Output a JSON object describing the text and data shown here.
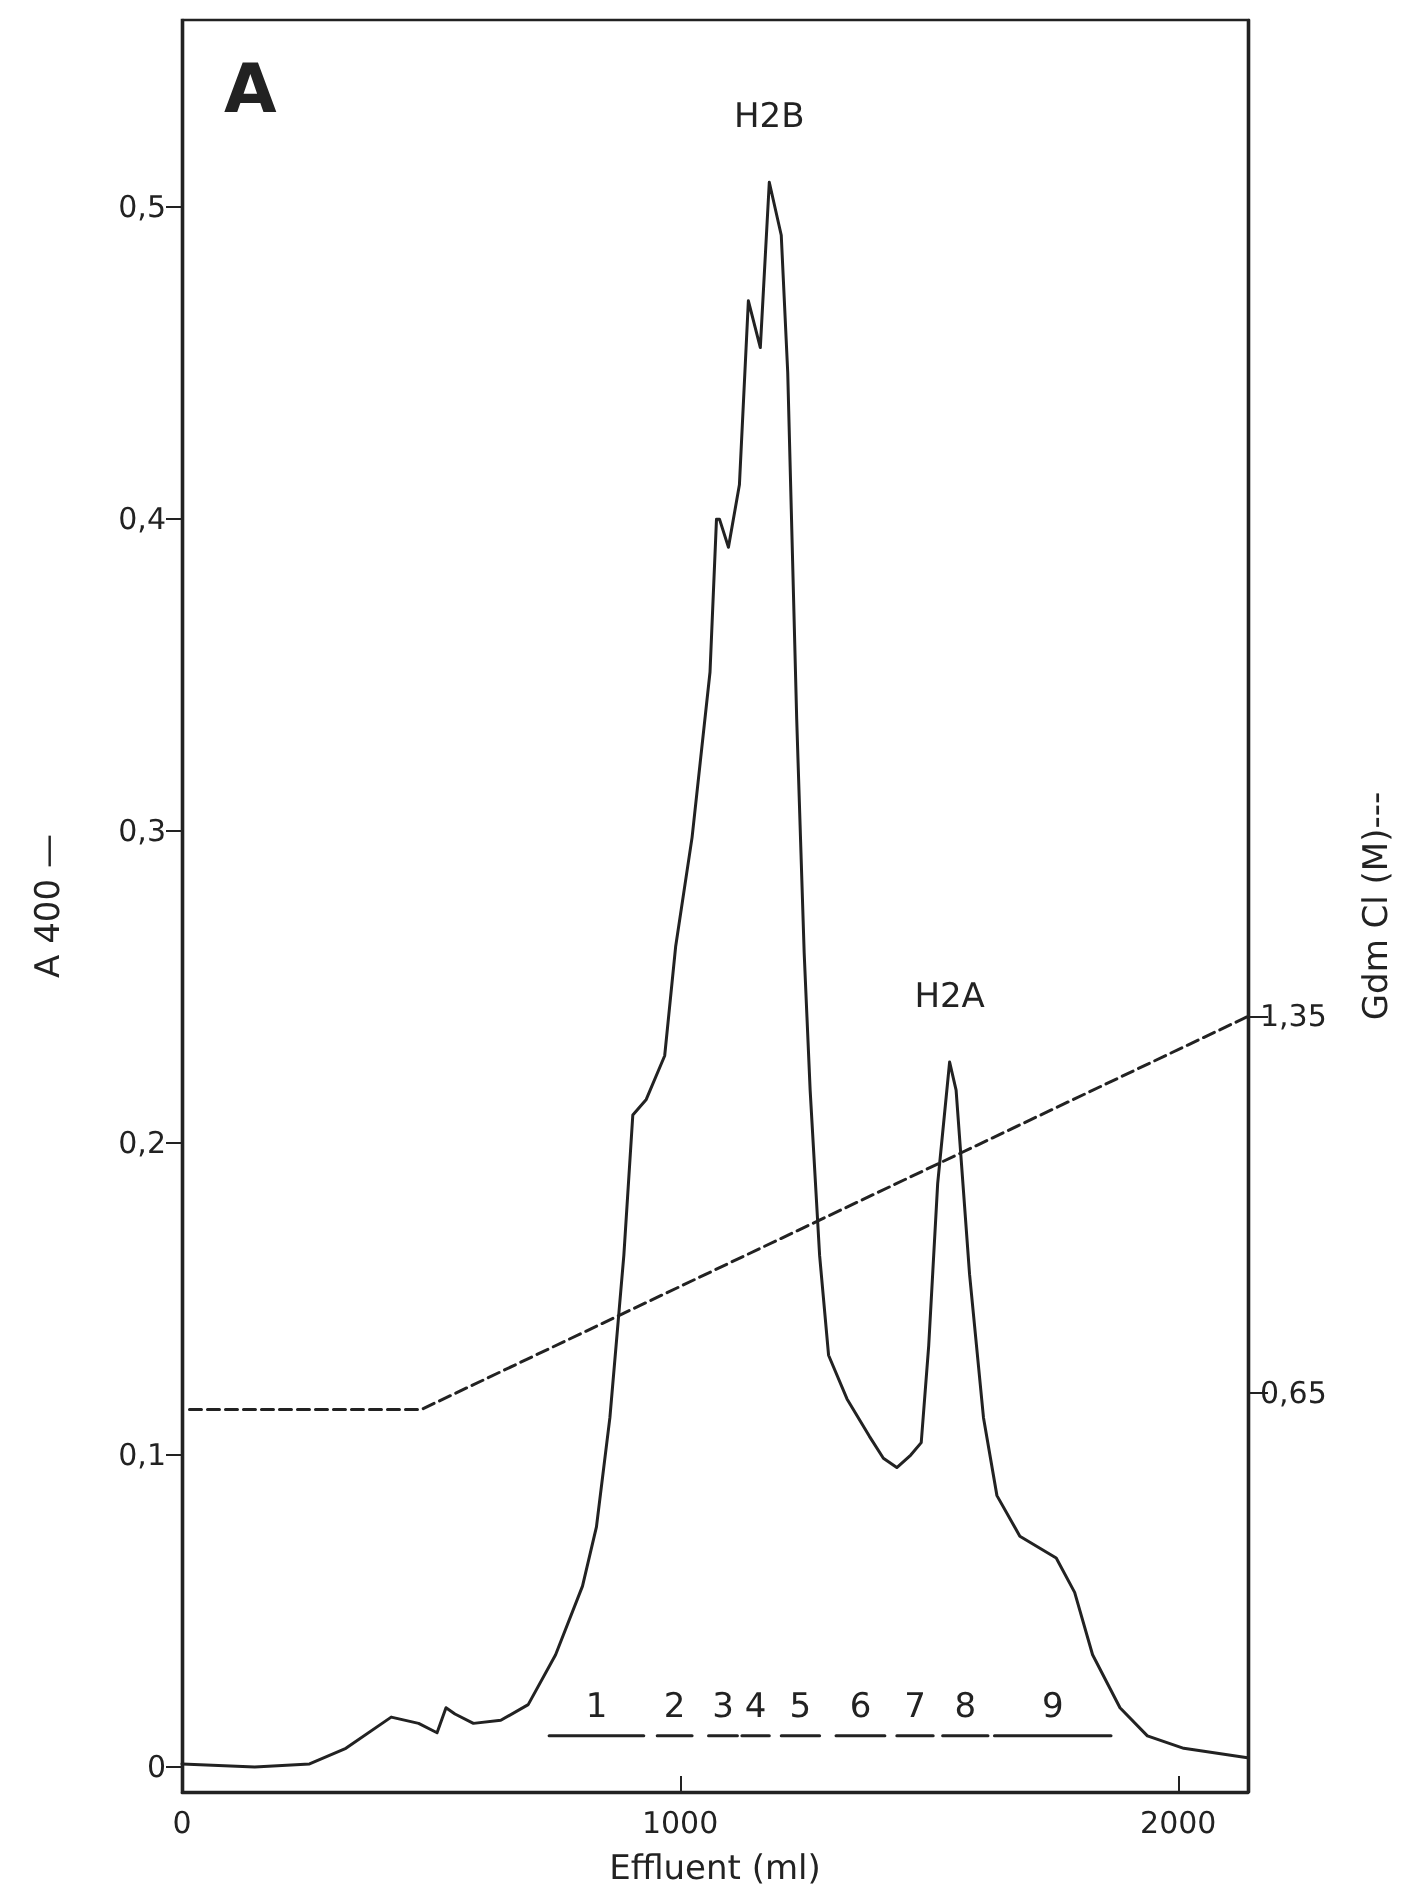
{
  "chart_data": {
    "type": "line",
    "xlabel": "Effluent (ml)",
    "ylabel": "A 400 —",
    "y2label": "Gdm Cl (M)---",
    "annotations": [
      "A",
      {
        "text": "H2B",
        "x": 1179,
        "y": 0.508
      },
      {
        "text": "H2A",
        "x": 1541,
        "y": 0.226
      }
    ],
    "series": [
      {
        "color": "#222222",
        "line_style": "solid",
        "x": [
          0,
          146,
          256,
          329,
          420,
          475,
          512,
          530,
          548,
          585,
          640,
          695,
          750,
          804,
          832,
          859,
          887,
          905,
          932,
          969,
          991,
          1024,
          1060,
          1073,
          1079,
          1097,
          1119,
          1137,
          1161,
          1179,
          1203,
          1216,
          1234,
          1249,
          1261,
          1280,
          1298,
          1335,
          1380,
          1408,
          1435,
          1463,
          1484,
          1499,
          1517,
          1541,
          1554,
          1581,
          1609,
          1636,
          1682,
          1755,
          1792,
          1828,
          1883,
          1938,
          2011,
          2139
        ],
        "values": [
          0.001,
          0,
          0.001,
          0.006,
          0.016,
          0.014,
          0.011,
          0.019,
          0.017,
          0.014,
          0.015,
          0.02,
          0.036,
          0.058,
          0.077,
          0.112,
          0.164,
          0.209,
          0.214,
          0.228,
          0.263,
          0.298,
          0.351,
          0.4,
          0.4,
          0.391,
          0.411,
          0.47,
          0.455,
          0.508,
          0.491,
          0.447,
          0.336,
          0.261,
          0.217,
          0.164,
          0.132,
          0.118,
          0.106,
          0.099,
          0.096,
          0.1,
          0.104,
          0.135,
          0.187,
          0.226,
          0.217,
          0.158,
          0.112,
          0.087,
          0.074,
          0.067,
          0.056,
          0.036,
          0.019,
          0.01,
          0.006,
          0.003
        ]
      },
      {
        "color": "#222222",
        "line_style": "dashed",
        "axis": "y2",
        "x": [
          15,
          480,
          2140
        ],
        "values": [
          0.62,
          0.62,
          1.35
        ]
      },
      {
        "name": "1",
        "color": "#222222",
        "line_style": "solid",
        "x": [
          737,
          927
        ],
        "values": [
          0.01,
          0.01
        ]
      },
      {
        "name": "2",
        "color": "#222222",
        "line_style": "solid",
        "x": [
          954,
          1024
        ],
        "values": [
          0.01,
          0.01
        ]
      },
      {
        "name": "3",
        "color": "#222222",
        "line_style": "solid",
        "x": [
          1057,
          1115
        ],
        "values": [
          0.01,
          0.01
        ]
      },
      {
        "name": "4",
        "color": "#222222",
        "line_style": "solid",
        "x": [
          1124,
          1179
        ],
        "values": [
          0.01,
          0.01
        ]
      },
      {
        "name": "5",
        "color": "#222222",
        "line_style": "solid",
        "x": [
          1203,
          1280
        ],
        "values": [
          0.01,
          0.01
        ]
      },
      {
        "name": "6",
        "color": "#222222",
        "line_style": "solid",
        "x": [
          1313,
          1411
        ],
        "values": [
          0.01,
          0.01
        ]
      },
      {
        "name": "7",
        "color": "#222222",
        "line_style": "solid",
        "x": [
          1435,
          1508
        ],
        "values": [
          0.01,
          0.01
        ]
      },
      {
        "name": "8",
        "color": "#222222",
        "line_style": "solid",
        "x": [
          1527,
          1618
        ],
        "values": [
          0.01,
          0.01
        ]
      },
      {
        "name": "9",
        "color": "#222222",
        "line_style": "solid",
        "x": [
          1631,
          1865
        ],
        "values": [
          0.01,
          0.01
        ]
      }
    ],
    "xlim": [
      0,
      2140
    ],
    "xticks": [
      0,
      1000,
      2000
    ],
    "ylim": [
      -0.008,
      0.56
    ],
    "yticks": [
      0,
      {
        "value": 0.1,
        "label": "0,1"
      },
      {
        "value": 0.2,
        "label": "0,2"
      },
      {
        "value": 0.3,
        "label": "0,3"
      },
      {
        "value": 0.4,
        "label": "0,4"
      },
      {
        "value": 0.5,
        "label": "0,5"
      }
    ],
    "y2lim": [
      -0.09,
      3.2
    ],
    "y2ticks": [
      {
        "value": 0.65,
        "label": "0,65"
      },
      {
        "value": 1.35,
        "label": "1,35"
      }
    ],
    "grid": false,
    "legend": false,
    "marker": "none"
  }
}
